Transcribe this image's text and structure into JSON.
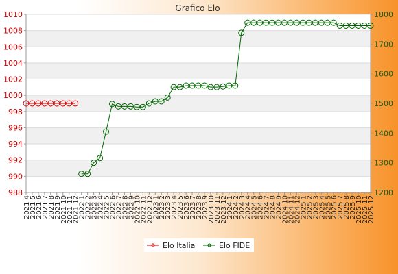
{
  "chart_data": {
    "type": "line",
    "title": "Grafico Elo",
    "categories": [
      "2021 4",
      "2021 5",
      "2021 6",
      "2021 7",
      "2021 8",
      "2021 9",
      "2021 10",
      "2021 11",
      "2021 12",
      "2022 1",
      "2022 2",
      "2022 3",
      "2022 4",
      "2022 5",
      "2022 6",
      "2022 7",
      "2022 8",
      "2022 9",
      "2022 10",
      "2022 11",
      "2022 12",
      "2023 1",
      "2023 2",
      "2023 3",
      "2023 4",
      "2023 5",
      "2023 6",
      "2023 7",
      "2023 8",
      "2023 9",
      "2023 10",
      "2023 11",
      "2023 12",
      "2024 1",
      "2024 2",
      "2024 3",
      "2024 4",
      "2024 5",
      "2024 6",
      "2024 7",
      "2024 8",
      "2024 9",
      "2024 10",
      "2024 11",
      "2024 12",
      "2025 1",
      "2025 2",
      "2025 3",
      "2025 4",
      "2025 5",
      "2025 6",
      "2025 7",
      "2025 8",
      "2025 9",
      "2025 10",
      "2025 11",
      "2025 12"
    ],
    "series": [
      {
        "name": "Elo Italia",
        "axis": "left",
        "color": "#cc0000",
        "values": [
          999,
          999,
          999,
          999,
          999,
          999,
          999,
          999,
          999,
          null,
          null,
          null,
          null,
          null,
          null,
          null,
          null,
          null,
          null,
          null,
          null,
          null,
          null,
          null,
          null,
          null,
          null,
          null,
          null,
          null,
          null,
          null,
          null,
          null,
          null,
          null,
          null,
          null,
          null,
          null,
          null,
          null,
          null,
          null,
          null,
          null,
          null,
          null,
          null,
          null,
          null,
          null,
          null,
          null,
          null,
          null,
          null
        ]
      },
      {
        "name": "Elo FIDE",
        "axis": "right",
        "color": "#006600",
        "values": [
          null,
          null,
          null,
          null,
          null,
          null,
          null,
          null,
          null,
          1263,
          1263,
          1300,
          1316,
          1405,
          1498,
          1490,
          1490,
          1490,
          1488,
          1488,
          1500,
          1507,
          1507,
          1520,
          1555,
          1555,
          1560,
          1560,
          1560,
          1560,
          1555,
          1555,
          1557,
          1560,
          1560,
          1738,
          1772,
          1772,
          1772,
          1772,
          1772,
          1772,
          1772,
          1772,
          1772,
          1772,
          1772,
          1772,
          1772,
          1772,
          1772,
          1762,
          1762,
          1762,
          1762,
          1762,
          1762
        ]
      }
    ],
    "y_left": {
      "min": 988,
      "max": 1010,
      "ticks": [
        988,
        990,
        992,
        994,
        996,
        998,
        1000,
        1002,
        1004,
        1006,
        1008,
        1010
      ]
    },
    "y_right": {
      "min": 1200,
      "max": 1800,
      "ticks": [
        1200,
        1300,
        1400,
        1500,
        1600,
        1700,
        1800
      ]
    },
    "grid": true,
    "legend_position": "bottom"
  }
}
